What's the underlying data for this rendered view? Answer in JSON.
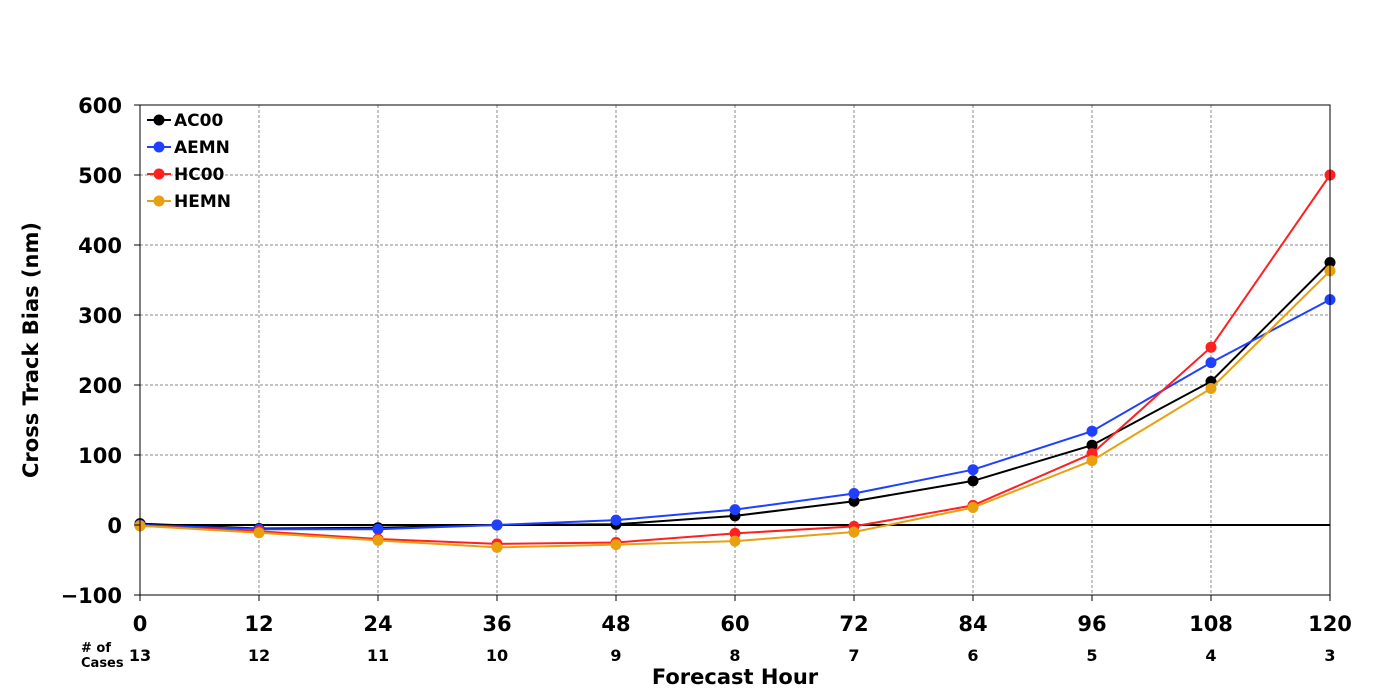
{
  "chart_data": {
    "type": "line",
    "title": "",
    "xlabel": "Forecast Hour",
    "ylabel": "Cross Track Bias (nm)",
    "xlim": [
      0,
      120
    ],
    "ylim": [
      -100,
      600
    ],
    "x": [
      0,
      12,
      24,
      36,
      48,
      60,
      72,
      84,
      96,
      108,
      120
    ],
    "x_ticks": [
      "0",
      "12",
      "24",
      "36",
      "48",
      "60",
      "72",
      "84",
      "96",
      "108",
      "120"
    ],
    "y_ticks": [
      -100,
      0,
      100,
      200,
      300,
      400,
      500,
      600
    ],
    "y_tick_labels": [
      "−100",
      "0",
      "100",
      "200",
      "300",
      "400",
      "500",
      "600"
    ],
    "grid": true,
    "legend_position": "top-left",
    "cases_label": "# of\nCases",
    "cases": [
      "13",
      "12",
      "11",
      "10",
      "9",
      "8",
      "7",
      "6",
      "5",
      "4",
      "3"
    ],
    "series": [
      {
        "name": "AC00",
        "color": "#000000",
        "values": [
          2,
          -5,
          -4,
          0,
          1,
          13,
          34,
          63,
          114,
          205,
          375
        ]
      },
      {
        "name": "AEMN",
        "color": "#2040ff",
        "values": [
          0,
          -6,
          -6,
          0,
          7,
          22,
          45,
          79,
          134,
          232,
          322
        ]
      },
      {
        "name": "HC00",
        "color": "#ff2020",
        "values": [
          -1,
          -9,
          -20,
          -27,
          -25,
          -12,
          -2,
          28,
          102,
          254,
          500
        ]
      },
      {
        "name": "HEMN",
        "color": "#e8a010",
        "values": [
          -1,
          -11,
          -22,
          -32,
          -28,
          -23,
          -10,
          25,
          92,
          195,
          363
        ]
      }
    ]
  }
}
